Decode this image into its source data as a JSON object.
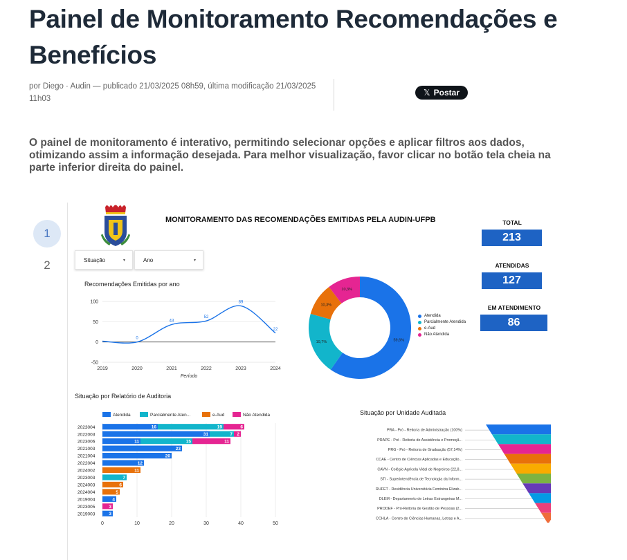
{
  "article": {
    "title": "Painel de Monitoramento Recomendações e Benefícios",
    "byline": "por Diego · Audin — publicado 21/03/2025 08h59, última modificação 21/03/2025 11h03",
    "share_label": "Postar",
    "share_icon": "x-logo-icon",
    "intro": "O painel de monitoramento é interativo, permitindo selecionar opções e aplicar filtros aos dados, otimizando assim a informação desejada. Para melhor visualização, favor clicar no botão tela cheia na parte inferior direita do painel."
  },
  "pages": [
    "1",
    "2"
  ],
  "dashboard": {
    "title": "MONITORAMENTO DAS RECOMENDAÇÕES EMITIDAS PELA AUDIN-UFPB",
    "filters": {
      "situacao": "Situação",
      "ano": "Ano"
    },
    "kpis": [
      {
        "label": "TOTAL",
        "value": "213"
      },
      {
        "label": "ATENDIDAS",
        "value": "127"
      },
      {
        "label": "EM ATENDIMENTO",
        "value": "86"
      }
    ],
    "colors": {
      "atendida": "#1a73e8",
      "parcialmente": "#12b5cb",
      "eaud": "#e8710a",
      "nao_atendida": "#e52592",
      "kpi": "#1e63c4"
    }
  },
  "chart_data": [
    {
      "type": "line",
      "title": "Recomendações Emitidas por ano",
      "xlabel": "Período",
      "ylabel": "",
      "x": [
        "2019",
        "2020",
        "2021",
        "2022",
        "2023",
        "2024"
      ],
      "values": [
        2,
        0,
        43,
        52,
        89,
        22
      ],
      "point_labels": [
        "",
        "0",
        "43",
        "52",
        "89",
        "22"
      ],
      "y_ticks": [
        "100",
        "50",
        "0",
        "-50"
      ],
      "ylim": [
        -50,
        100
      ],
      "grid": true
    },
    {
      "type": "pie",
      "title": "",
      "categories": [
        "Atendida",
        "Parcialmente Atendida",
        "e-Aud",
        "Não Atendida"
      ],
      "values": [
        59.6,
        19.7,
        10.3,
        10.3
      ],
      "value_labels": [
        "59,6%",
        "19,7%",
        "10,3%",
        "10,3%"
      ],
      "colors": [
        "#1a73e8",
        "#12b5cb",
        "#e8710a",
        "#e52592"
      ],
      "donut": true,
      "legend": "right"
    },
    {
      "type": "bar",
      "orientation": "horizontal",
      "stacked": true,
      "title": "Situação por Relatório de Auditoria",
      "categories": [
        "2023004",
        "2022003",
        "2023006",
        "2021003",
        "2021004",
        "2022004",
        "2024002",
        "2023003",
        "2024003",
        "2024004",
        "2019004",
        "2023005",
        "2019003"
      ],
      "series": [
        {
          "name": "Atendida",
          "values": [
            16,
            31,
            11,
            23,
            20,
            12,
            0,
            0,
            0,
            0,
            4,
            0,
            3
          ]
        },
        {
          "name": "Parcialmente Aten...",
          "values": [
            19,
            7,
            15,
            0,
            0,
            0,
            0,
            0,
            0,
            0,
            0,
            0,
            0
          ]
        },
        {
          "name": "e-Aud",
          "values": [
            0,
            0,
            0,
            0,
            0,
            0,
            11,
            0,
            6,
            5,
            0,
            0,
            0
          ]
        },
        {
          "name": "Não Atendida",
          "values": [
            6,
            2,
            11,
            0,
            0,
            0,
            0,
            0,
            0,
            0,
            0,
            3,
            0
          ]
        },
        {
          "name": "_teal_other",
          "values": [
            0,
            0,
            0,
            0,
            0,
            0,
            0,
            7,
            0,
            0,
            0,
            0,
            0
          ]
        }
      ],
      "x_ticks": [
        "0",
        "10",
        "20",
        "30",
        "40",
        "50"
      ],
      "xlim": [
        0,
        50
      ],
      "legend": "top",
      "grid": true
    },
    {
      "type": "funnel",
      "title": "Situação por Unidade Auditada",
      "categories": [
        "PRA - Pró - Reitoria de Administração (100%)",
        "PRAPE - Pró - Reitoria de Assistência e Promoçã...",
        "PRG - Pró - Reitoria de Graduação (57,14%)",
        "CCAE - Centro de Ciências Aplicadas e Educação...",
        "CAVN - Colégio Agrícola Vidal de Negreiros (22,8...",
        "STI - Superintendência de Tecnologia da Inform...",
        "RUFET - Residência Universitária Feminina Elizab...",
        "DLEM - Departamento de Letras Estrangeiras M...",
        "PRODEF - Pró-Reitoria de Gestão de Pessoas (2...",
        "CCHLA - Centro de Ciências Humanas, Letras e A..."
      ],
      "colors": [
        "#1a73e8",
        "#12b5cb",
        "#e52592",
        "#e8710a",
        "#f9ab00",
        "#7cb342",
        "#673ab7",
        "#039be5",
        "#ec407a",
        "#ef6c3a"
      ]
    }
  ]
}
